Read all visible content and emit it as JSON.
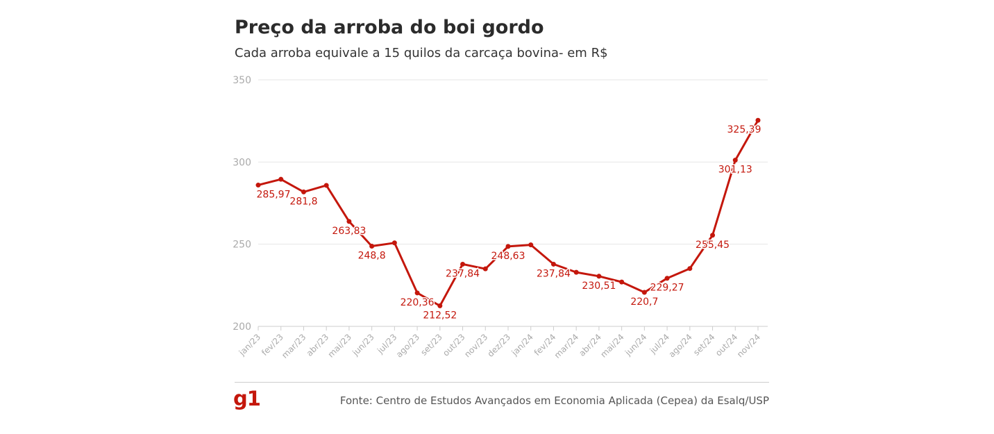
{
  "header": {
    "title": "Preço da arroba do boi gordo",
    "subtitle": "Cada arroba equivale a 15 quilos da carcaça bovina- em R$"
  },
  "footer": {
    "logo": "g1",
    "source": "Fonte: Centro de Estudos Avançados em Economia Aplicada (Cepea) da Esalq/USP"
  },
  "colors": {
    "line": "#c4170c",
    "grid": "#e6e6e6",
    "tick": "#aaaaaa",
    "logo": "#c4170c"
  },
  "chart_data": {
    "type": "line",
    "title": "Preço da arroba do boi gordo",
    "subtitle": "Cada arroba equivale a 15 quilos da carcaça bovina- em R$",
    "xlabel": "",
    "ylabel": "",
    "ylim": [
      200,
      350
    ],
    "yticks": [
      200,
      250,
      300,
      350
    ],
    "grid": true,
    "categories": [
      "jan/23",
      "fev/23",
      "mar/23",
      "abr/23",
      "mai/23",
      "jun/23",
      "jul/23",
      "ago/23",
      "set/23",
      "out/23",
      "nov/23",
      "dez/23",
      "jan/24",
      "fev/24",
      "mar/24",
      "abr/24",
      "mai/24",
      "jun/24",
      "jul/24",
      "ago/24",
      "set/24",
      "out/24",
      "nov/24"
    ],
    "series": [
      {
        "values": [
          285.97,
          289.5,
          281.8,
          285.8,
          263.83,
          248.8,
          250.8,
          220.36,
          212.52,
          237.84,
          235.0,
          248.63,
          249.6,
          237.84,
          232.9,
          230.51,
          227.0,
          220.7,
          229.27,
          235.2,
          255.45,
          301.13,
          325.39
        ],
        "labels": [
          "285,97",
          "",
          "281,8",
          "",
          "263,83",
          "248,8",
          "",
          "220,36",
          "212,52",
          "237,84",
          "",
          "248,63",
          "",
          "237,84",
          "",
          "230,51",
          "",
          "220,7",
          "229,27",
          "",
          "255,45",
          "301,13",
          "325,39"
        ]
      }
    ]
  }
}
